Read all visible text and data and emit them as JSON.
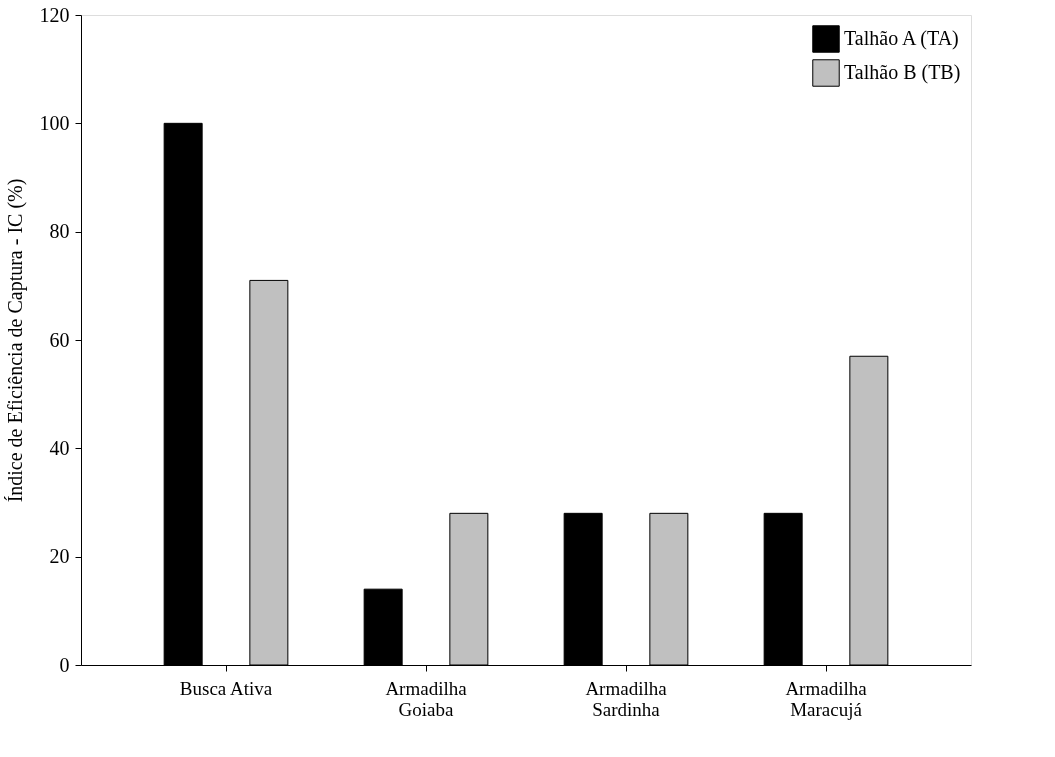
{
  "chart_data": {
    "type": "bar",
    "ylabel": "Índice de Eficiência de Captura - IC (%)",
    "categories": [
      "Busca Ativa",
      "Armadilha\nGoiaba",
      "Armadilha\nSardinha",
      "Armadilha\nMaracujá"
    ],
    "series": [
      {
        "name": "Talhão A (TA)",
        "color": "#000000",
        "values": [
          100,
          14,
          28,
          28
        ]
      },
      {
        "name": "Talhão B (TB)",
        "color": "#c0c0c0",
        "values": [
          71,
          28,
          28,
          57
        ]
      }
    ],
    "ylim": [
      0,
      120
    ],
    "yticks": [
      0,
      20,
      40,
      60,
      80,
      100,
      120
    ],
    "grid": false,
    "legend": "top right"
  }
}
